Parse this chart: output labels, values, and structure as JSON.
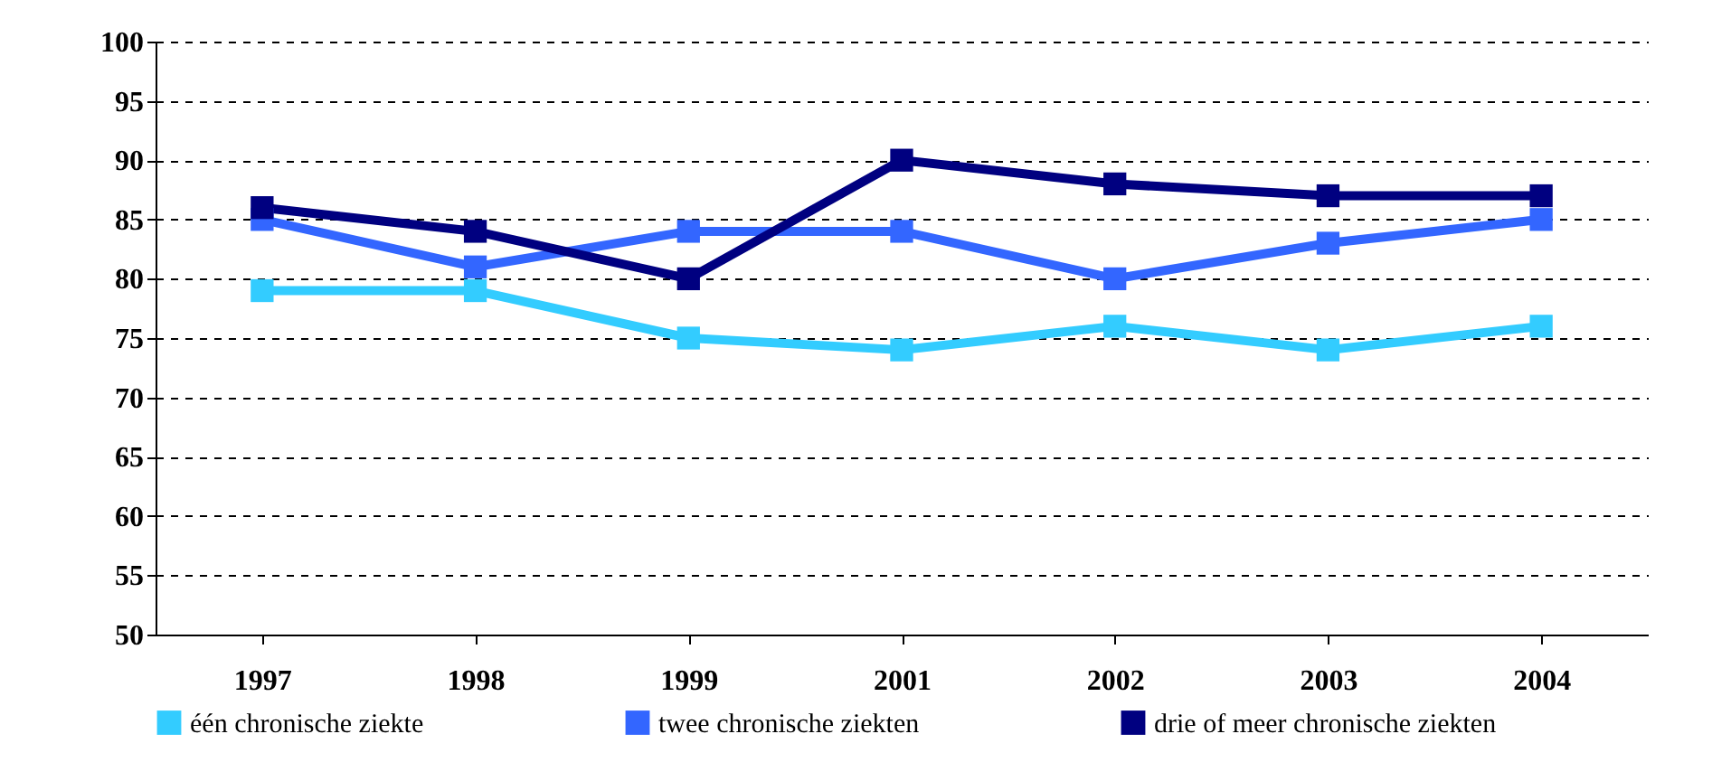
{
  "chart_data": {
    "type": "line",
    "categories": [
      "1997",
      "1998",
      "1999",
      "2001",
      "2002",
      "2003",
      "2004"
    ],
    "series": [
      {
        "name": "één chronische ziekte",
        "color": "#33ccff",
        "values": [
          79,
          79,
          75,
          74,
          76,
          74,
          76
        ]
      },
      {
        "name": "twee chronische ziekten",
        "color": "#3366ff",
        "values": [
          85,
          81,
          84,
          84,
          80,
          83,
          85
        ]
      },
      {
        "name": "drie of meer chronische ziekten",
        "color": "#000080",
        "values": [
          86,
          84,
          80,
          90,
          88,
          87,
          87
        ]
      }
    ],
    "ylim": [
      50,
      100
    ],
    "yticks": [
      50,
      55,
      60,
      65,
      70,
      75,
      80,
      85,
      90,
      95,
      100
    ],
    "grid": "y",
    "legend": "bottom",
    "marker": "square",
    "line_style": "solid"
  }
}
